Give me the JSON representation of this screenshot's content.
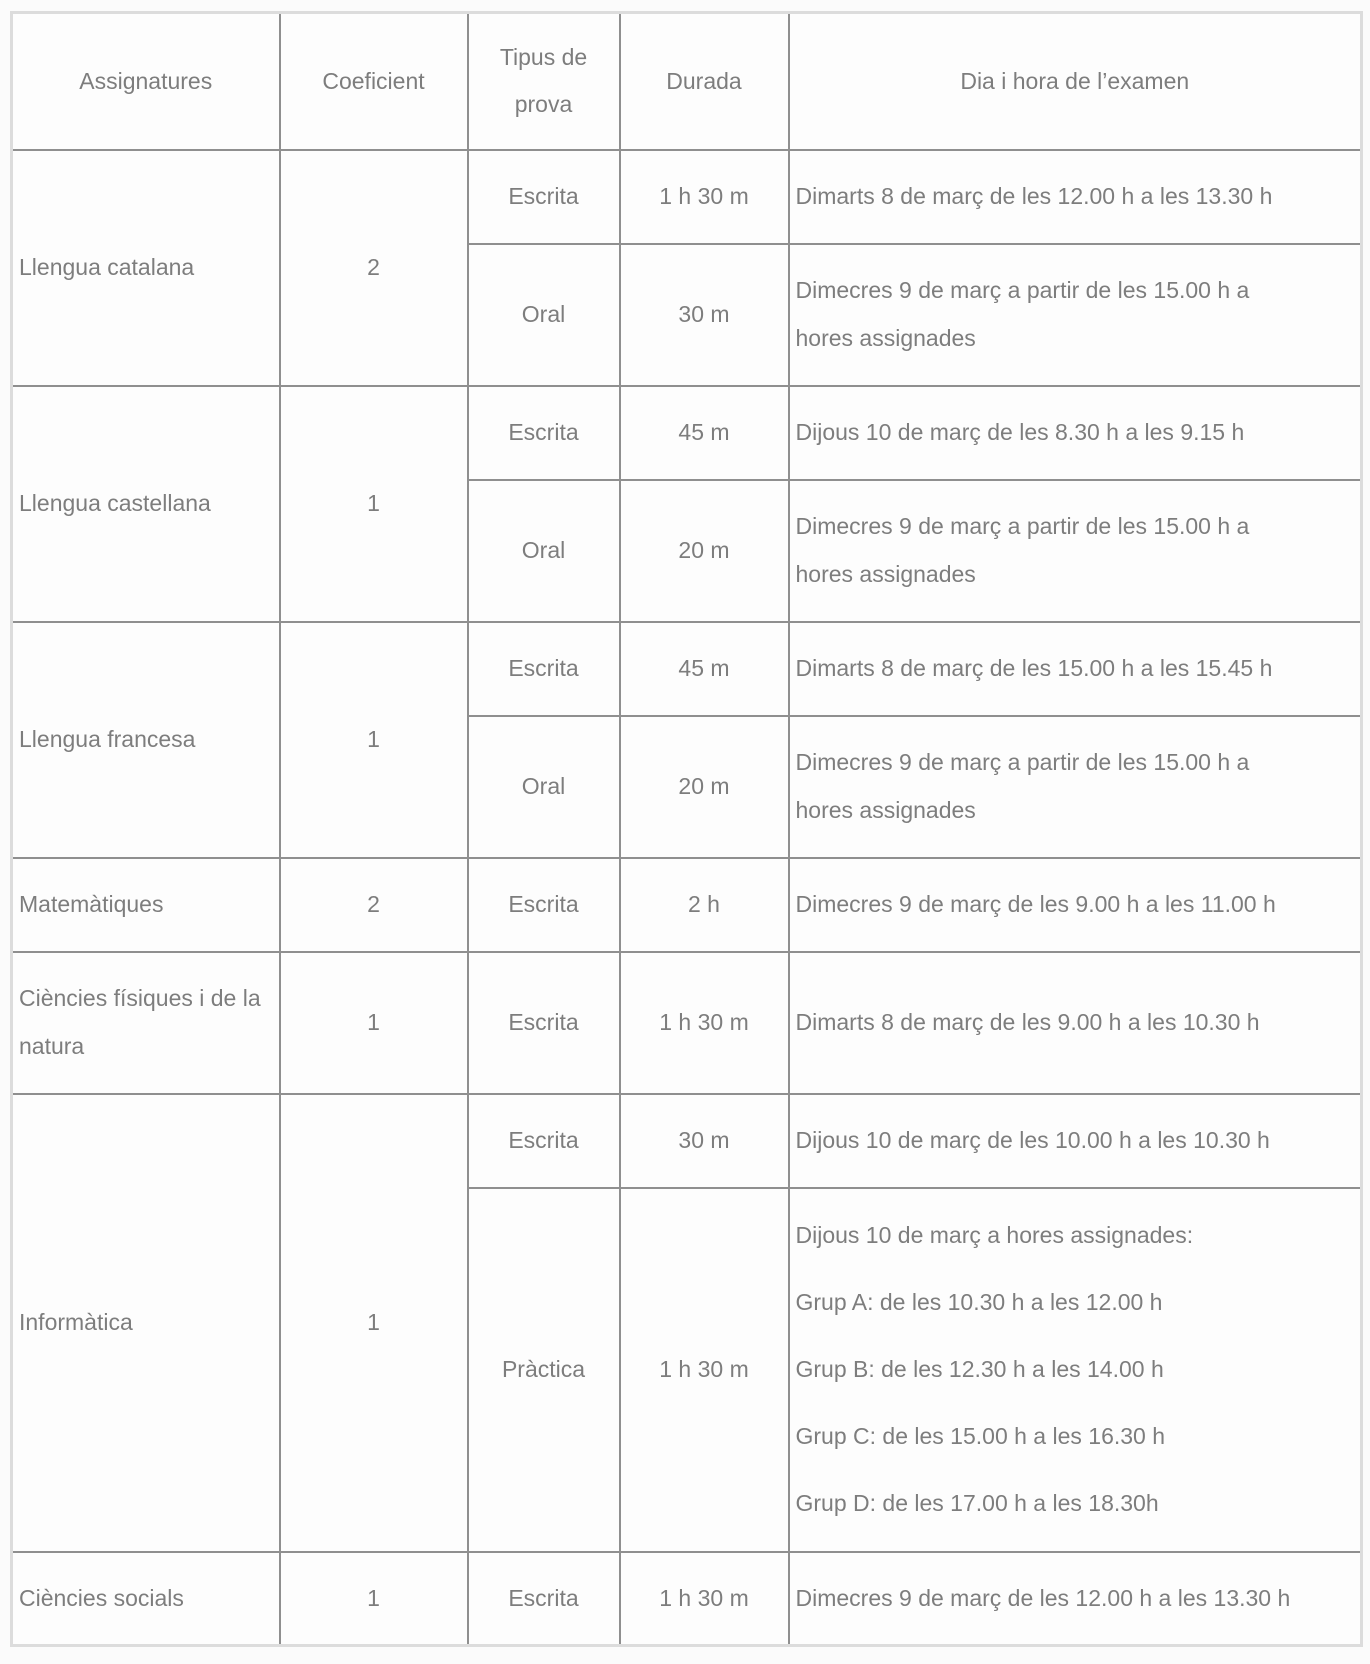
{
  "colors": {
    "text": "#7d7d7d",
    "inner_border": "#8f8f8f",
    "outer_border": "#dcdcdc",
    "background": "#fbfbfb"
  },
  "table": {
    "headers": {
      "subject": "Assignatures",
      "coefficient": "Coeficient",
      "exam_type": "Tipus de prova",
      "duration": "Durada",
      "schedule": "Dia i hora de l’examen"
    },
    "rows": [
      {
        "subject": "Llengua catalana",
        "coefficient": "2",
        "exams": [
          {
            "type": "Escrita",
            "duration": "1 h 30 m",
            "lines": [
              "Dimarts 8 de març de les 12.00 h a les 13.30 h"
            ]
          },
          {
            "type": "Oral",
            "duration": "30 m",
            "lines": [
              "Dimecres 9 de març a partir de les 15.00 h a",
              "hores assignades"
            ]
          }
        ]
      },
      {
        "subject": "Llengua castellana",
        "coefficient": "1",
        "exams": [
          {
            "type": "Escrita",
            "duration": "45 m",
            "lines": [
              "Dijous 10 de març de les 8.30 h a les 9.15 h"
            ]
          },
          {
            "type": "Oral",
            "duration": "20 m",
            "lines": [
              "Dimecres 9 de març a partir de les 15.00 h a",
              "hores assignades"
            ]
          }
        ]
      },
      {
        "subject": "Llengua francesa",
        "coefficient": "1",
        "exams": [
          {
            "type": "Escrita",
            "duration": "45 m",
            "lines": [
              "Dimarts 8 de març de les 15.00 h a les 15.45 h"
            ]
          },
          {
            "type": "Oral",
            "duration": "20 m",
            "lines": [
              "Dimecres 9 de març a partir de les 15.00 h a",
              "hores assignades"
            ]
          }
        ]
      },
      {
        "subject": "Matemàtiques",
        "coefficient": "2",
        "exams": [
          {
            "type": "Escrita",
            "duration": "2 h",
            "lines": [
              "Dimecres 9 de març de les 9.00 h a les 11.00 h"
            ]
          }
        ]
      },
      {
        "subject": "Ciències físiques i de la natura",
        "coefficient": "1",
        "exams": [
          {
            "type": "Escrita",
            "duration": "1 h 30 m",
            "lines": [
              "Dimarts 8 de març de les 9.00 h a les 10.30 h"
            ]
          }
        ]
      },
      {
        "subject": "Informàtica",
        "coefficient": "1",
        "exams": [
          {
            "type": "Escrita",
            "duration": "30 m",
            "lines": [
              "Dijous 10 de març de les 10.00 h a les 10.30 h"
            ]
          },
          {
            "type": "Pràctica",
            "duration": "1 h 30 m",
            "lines": [
              "Dijous 10 de març a hores assignades:",
              "Grup A: de les 10.30 h a les 12.00 h",
              "Grup B: de les 12.30 h a les 14.00 h",
              "Grup C: de les 15.00 h a les 16.30 h",
              "Grup D: de les 17.00 h a les 18.30h"
            ]
          }
        ]
      },
      {
        "subject": "Ciències socials",
        "coefficient": "1",
        "exams": [
          {
            "type": "Escrita",
            "duration": "1 h 30 m",
            "lines": [
              "Dimecres 9 de març de les 12.00 h a les 13.30 h"
            ]
          }
        ]
      }
    ]
  }
}
